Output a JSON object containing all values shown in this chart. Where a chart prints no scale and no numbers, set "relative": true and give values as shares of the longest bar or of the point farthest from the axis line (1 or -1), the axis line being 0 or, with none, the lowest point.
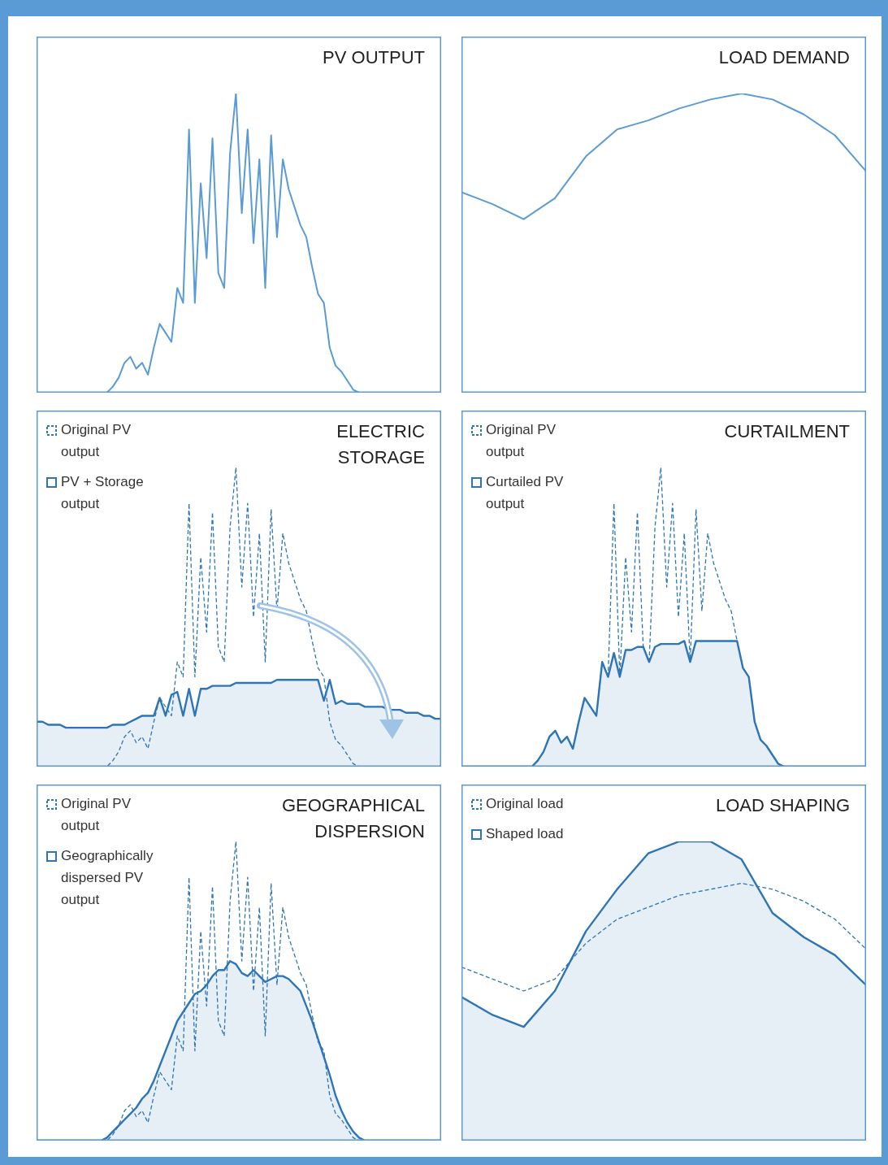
{
  "chart_data": [
    {
      "type": "line",
      "title": "PV OUTPUT",
      "relative": true,
      "categories": [
        null,
        null,
        null,
        null,
        null,
        null,
        null,
        null,
        null,
        null,
        null,
        null,
        null,
        null,
        null,
        null,
        null,
        null,
        null,
        null,
        null,
        null,
        null,
        null,
        null,
        null,
        null,
        null,
        null,
        null,
        null,
        null,
        null,
        null,
        null,
        null,
        null,
        null,
        null,
        null,
        null,
        null,
        null,
        null,
        null,
        null,
        null,
        null,
        null,
        null,
        null,
        null,
        null,
        null,
        null,
        null,
        null,
        null,
        null,
        null,
        null,
        null,
        null,
        null,
        null,
        null,
        null,
        null,
        null,
        null
      ],
      "series": [
        {
          "type": "line",
          "line_style": "solid",
          "color": "#5b9bd5",
          "values": [
            0,
            0,
            0,
            0,
            0,
            0,
            0,
            0,
            0,
            0,
            0,
            0,
            0,
            0.02,
            0.05,
            0.1,
            0.12,
            0.08,
            0.1,
            0.06,
            0.15,
            0.23,
            0.2,
            0.17,
            0.35,
            0.3,
            0.88,
            0.3,
            0.7,
            0.45,
            0.85,
            0.4,
            0.35,
            0.8,
            1,
            0.6,
            0.88,
            0.5,
            0.78,
            0.35,
            0.86,
            0.52,
            0.78,
            0.68,
            0.62,
            0.56,
            0.52,
            0.42,
            0.33,
            0.3,
            0.15,
            0.09,
            0.07,
            0.04,
            0.01,
            0,
            0,
            0,
            0,
            0,
            0,
            0,
            0,
            0,
            0,
            0,
            0,
            0,
            0,
            0
          ]
        }
      ]
    },
    {
      "type": "line",
      "title": "LOAD DEMAND",
      "relative": true,
      "categories": [
        null,
        null,
        null,
        null,
        null,
        null,
        null,
        null,
        null,
        null,
        null,
        null,
        null,
        null
      ],
      "series": [
        {
          "type": "line",
          "line_style": "solid",
          "color": "#5b9bd5",
          "values": [
            0.67,
            0.63,
            0.58,
            0.65,
            0.79,
            0.88,
            0.91,
            0.95,
            0.98,
            1,
            0.98,
            0.93,
            0.86,
            0.74
          ]
        }
      ]
    },
    {
      "type": "line",
      "title": "ELECTRIC STORAGE",
      "relative": true,
      "legend": "top left",
      "categories": [
        null,
        null,
        null,
        null,
        null,
        null,
        null,
        null,
        null,
        null,
        null,
        null,
        null,
        null,
        null,
        null,
        null,
        null,
        null,
        null,
        null,
        null,
        null,
        null,
        null,
        null,
        null,
        null,
        null,
        null,
        null,
        null,
        null,
        null,
        null,
        null,
        null,
        null,
        null,
        null,
        null,
        null,
        null,
        null,
        null,
        null,
        null,
        null,
        null,
        null,
        null,
        null,
        null,
        null,
        null,
        null,
        null,
        null,
        null,
        null,
        null,
        null,
        null,
        null,
        null,
        null,
        null,
        null,
        null,
        null
      ],
      "series": [
        {
          "name": "Original PV output",
          "type": "line",
          "line_style": "dashed",
          "color": "#2e75b6",
          "values": [
            0,
            0,
            0,
            0,
            0,
            0,
            0,
            0,
            0,
            0,
            0,
            0,
            0,
            0.02,
            0.05,
            0.1,
            0.12,
            0.08,
            0.1,
            0.06,
            0.15,
            0.23,
            0.2,
            0.17,
            0.35,
            0.3,
            0.88,
            0.3,
            0.7,
            0.45,
            0.85,
            0.4,
            0.35,
            0.8,
            1,
            0.6,
            0.88,
            0.5,
            0.78,
            0.35,
            0.86,
            0.52,
            0.78,
            0.68,
            0.62,
            0.56,
            0.52,
            0.42,
            0.33,
            0.3,
            0.15,
            0.09,
            0.07,
            0.04,
            0.01,
            0,
            0,
            0,
            0,
            0,
            0,
            0,
            0,
            0,
            0,
            0,
            0,
            0,
            0,
            0
          ]
        },
        {
          "name": "PV + Storage output",
          "type": "area",
          "line_style": "solid",
          "color": "#2e75b6",
          "values": [
            0.15,
            0.15,
            0.14,
            0.14,
            0.14,
            0.13,
            0.13,
            0.13,
            0.13,
            0.13,
            0.13,
            0.13,
            0.13,
            0.14,
            0.14,
            0.14,
            0.15,
            0.16,
            0.17,
            0.17,
            0.17,
            0.23,
            0.17,
            0.24,
            0.25,
            0.17,
            0.26,
            0.17,
            0.26,
            0.26,
            0.27,
            0.27,
            0.27,
            0.27,
            0.28,
            0.28,
            0.28,
            0.28,
            0.28,
            0.28,
            0.28,
            0.29,
            0.29,
            0.29,
            0.29,
            0.29,
            0.29,
            0.29,
            0.29,
            0.22,
            0.29,
            0.21,
            0.22,
            0.21,
            0.21,
            0.21,
            0.2,
            0.2,
            0.2,
            0.2,
            0.19,
            0.19,
            0.19,
            0.18,
            0.18,
            0.18,
            0.17,
            0.17,
            0.16,
            0.16
          ]
        }
      ]
    },
    {
      "type": "line",
      "title": "CURTAILMENT",
      "relative": true,
      "legend": "top left",
      "categories": [
        null,
        null,
        null,
        null,
        null,
        null,
        null,
        null,
        null,
        null,
        null,
        null,
        null,
        null,
        null,
        null,
        null,
        null,
        null,
        null,
        null,
        null,
        null,
        null,
        null,
        null,
        null,
        null,
        null,
        null,
        null,
        null,
        null,
        null,
        null,
        null,
        null,
        null,
        null,
        null,
        null,
        null,
        null,
        null,
        null,
        null,
        null,
        null,
        null,
        null,
        null,
        null,
        null,
        null,
        null,
        null,
        null,
        null,
        null,
        null,
        null,
        null,
        null,
        null,
        null,
        null,
        null,
        null,
        null,
        null
      ],
      "series": [
        {
          "name": "Original PV output",
          "type": "line",
          "line_style": "dashed",
          "color": "#2e75b6",
          "values": [
            0,
            0,
            0,
            0,
            0,
            0,
            0,
            0,
            0,
            0,
            0,
            0,
            0,
            0.02,
            0.05,
            0.1,
            0.12,
            0.08,
            0.1,
            0.06,
            0.15,
            0.23,
            0.2,
            0.17,
            0.35,
            0.3,
            0.88,
            0.3,
            0.7,
            0.45,
            0.85,
            0.4,
            0.35,
            0.8,
            1,
            0.6,
            0.88,
            0.5,
            0.78,
            0.35,
            0.86,
            0.52,
            0.78,
            0.68,
            0.62,
            0.56,
            0.52,
            0.42,
            0.33,
            0.3,
            0.15,
            0.09,
            0.07,
            0.04,
            0.01,
            0,
            0,
            0,
            0,
            0,
            0,
            0,
            0,
            0,
            0,
            0,
            0,
            0,
            0,
            0
          ]
        },
        {
          "name": "Curtailed PV output",
          "type": "area",
          "line_style": "solid",
          "color": "#2e75b6",
          "values": [
            0,
            0,
            0,
            0,
            0,
            0,
            0,
            0,
            0,
            0,
            0,
            0,
            0,
            0.02,
            0.05,
            0.1,
            0.12,
            0.08,
            0.1,
            0.06,
            0.15,
            0.23,
            0.2,
            0.17,
            0.35,
            0.3,
            0.38,
            0.3,
            0.39,
            0.39,
            0.4,
            0.4,
            0.35,
            0.4,
            0.41,
            0.41,
            0.41,
            0.41,
            0.42,
            0.35,
            0.42,
            0.42,
            0.42,
            0.42,
            0.42,
            0.42,
            0.42,
            0.42,
            0.33,
            0.3,
            0.15,
            0.09,
            0.07,
            0.04,
            0.01,
            0,
            0,
            0,
            0,
            0,
            0,
            0,
            0,
            0,
            0,
            0,
            0,
            0,
            0,
            0
          ]
        }
      ]
    },
    {
      "type": "line",
      "title": "GEOGRAPHICAL DISPERSION",
      "relative": true,
      "legend": "top left",
      "categories": [
        null,
        null,
        null,
        null,
        null,
        null,
        null,
        null,
        null,
        null,
        null,
        null,
        null,
        null,
        null,
        null,
        null,
        null,
        null,
        null,
        null,
        null,
        null,
        null,
        null,
        null,
        null,
        null,
        null,
        null,
        null,
        null,
        null,
        null,
        null,
        null,
        null,
        null,
        null,
        null,
        null,
        null,
        null,
        null,
        null,
        null,
        null,
        null,
        null,
        null,
        null,
        null,
        null,
        null,
        null,
        null,
        null,
        null,
        null,
        null,
        null,
        null,
        null,
        null,
        null,
        null,
        null,
        null,
        null,
        null
      ],
      "series": [
        {
          "name": "Original PV output",
          "type": "line",
          "line_style": "dashed",
          "color": "#2e75b6",
          "values": [
            0,
            0,
            0,
            0,
            0,
            0,
            0,
            0,
            0,
            0,
            0,
            0,
            0,
            0.02,
            0.05,
            0.1,
            0.12,
            0.08,
            0.1,
            0.06,
            0.15,
            0.23,
            0.2,
            0.17,
            0.35,
            0.3,
            0.88,
            0.3,
            0.7,
            0.45,
            0.85,
            0.4,
            0.35,
            0.8,
            1,
            0.6,
            0.88,
            0.5,
            0.78,
            0.35,
            0.86,
            0.52,
            0.78,
            0.68,
            0.62,
            0.56,
            0.52,
            0.42,
            0.33,
            0.3,
            0.15,
            0.09,
            0.07,
            0.04,
            0.01,
            0,
            0,
            0,
            0,
            0,
            0,
            0,
            0,
            0,
            0,
            0,
            0,
            0,
            0,
            0
          ]
        },
        {
          "name": "Geographically dispersed PV output",
          "type": "area",
          "line_style": "solid",
          "color": "#2e75b6",
          "values": [
            0,
            0,
            0,
            0,
            0,
            0,
            0,
            0,
            0,
            0,
            0,
            0,
            0.01,
            0.03,
            0.05,
            0.07,
            0.09,
            0.11,
            0.14,
            0.16,
            0.2,
            0.25,
            0.3,
            0.35,
            0.4,
            0.43,
            0.46,
            0.49,
            0.5,
            0.52,
            0.55,
            0.57,
            0.57,
            0.6,
            0.59,
            0.56,
            0.55,
            0.57,
            0.55,
            0.53,
            0.54,
            0.55,
            0.55,
            0.54,
            0.52,
            0.5,
            0.45,
            0.4,
            0.34,
            0.28,
            0.22,
            0.15,
            0.1,
            0.06,
            0.03,
            0.01,
            0,
            0,
            0,
            0,
            0,
            0,
            0,
            0,
            0,
            0,
            0,
            0,
            0,
            0
          ]
        }
      ]
    },
    {
      "type": "line",
      "title": "LOAD SHAPING",
      "relative": true,
      "legend": "top left",
      "categories": [
        null,
        null,
        null,
        null,
        null,
        null,
        null,
        null,
        null,
        null,
        null,
        null,
        null,
        null
      ],
      "series": [
        {
          "name": "Original load",
          "type": "line",
          "line_style": "dashed",
          "color": "#2e75b6",
          "values": [
            0.58,
            0.54,
            0.5,
            0.54,
            0.66,
            0.74,
            0.78,
            0.82,
            0.84,
            0.86,
            0.84,
            0.8,
            0.74,
            0.64
          ]
        },
        {
          "name": "Shaped load",
          "type": "area",
          "line_style": "solid",
          "color": "#2e75b6",
          "values": [
            0.48,
            0.42,
            0.38,
            0.5,
            0.7,
            0.84,
            0.96,
            1,
            1,
            0.94,
            0.76,
            0.68,
            0.62,
            0.52
          ]
        }
      ]
    }
  ]
}
